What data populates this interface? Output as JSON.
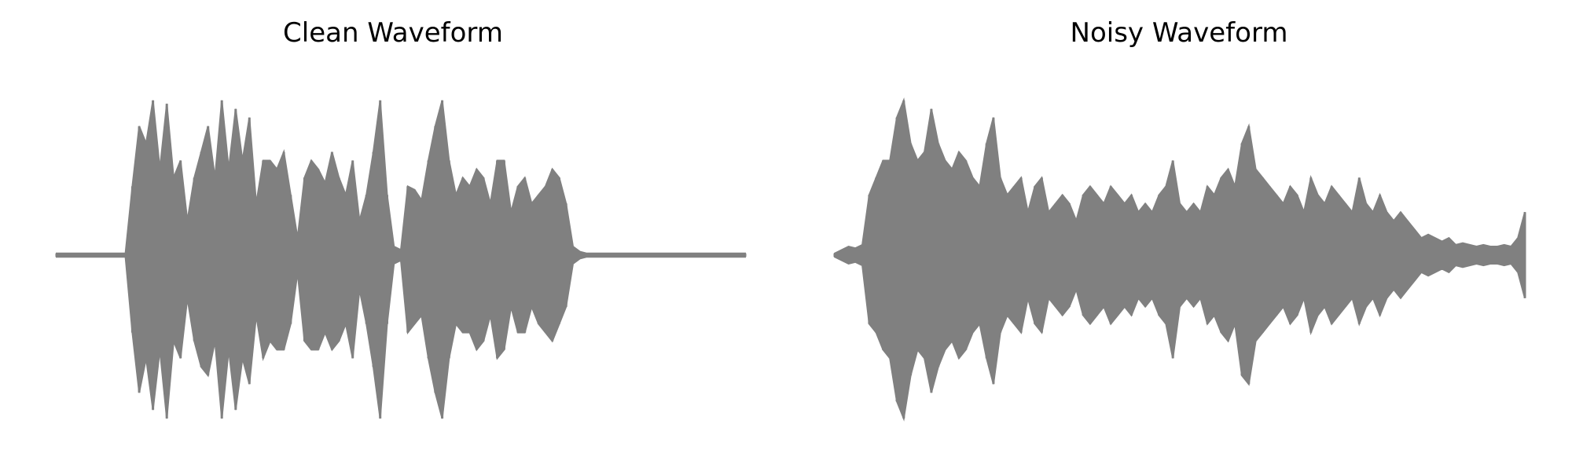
{
  "chart_data": [
    {
      "type": "area",
      "title": "Clean Waveform",
      "xlabel": "",
      "ylabel": "",
      "axes_visible": false,
      "grid": false,
      "color": "#808080",
      "ylim": [
        -1.05,
        1.05
      ],
      "x": [
        0.0,
        0.02,
        0.04,
        0.06,
        0.08,
        0.1,
        0.11,
        0.12,
        0.13,
        0.14,
        0.15,
        0.16,
        0.17,
        0.18,
        0.19,
        0.2,
        0.21,
        0.22,
        0.23,
        0.24,
        0.25,
        0.26,
        0.27,
        0.28,
        0.29,
        0.3,
        0.31,
        0.32,
        0.33,
        0.34,
        0.35,
        0.36,
        0.37,
        0.38,
        0.39,
        0.4,
        0.41,
        0.42,
        0.43,
        0.44,
        0.45,
        0.46,
        0.47,
        0.48,
        0.49,
        0.5,
        0.51,
        0.52,
        0.53,
        0.54,
        0.55,
        0.56,
        0.57,
        0.58,
        0.59,
        0.6,
        0.61,
        0.62,
        0.63,
        0.64,
        0.65,
        0.66,
        0.67,
        0.68,
        0.69,
        0.7,
        0.71,
        0.72,
        0.73,
        0.74,
        0.75,
        0.76,
        0.77,
        0.78,
        0.79,
        0.8,
        0.81,
        0.82,
        0.83,
        0.84,
        0.85,
        0.86,
        0.88,
        0.9,
        0.92,
        0.94,
        0.96,
        0.98,
        1.0
      ],
      "upper": [
        0.01,
        0.01,
        0.01,
        0.01,
        0.01,
        0.01,
        0.4,
        0.75,
        0.65,
        0.9,
        0.5,
        0.88,
        0.45,
        0.55,
        0.2,
        0.45,
        0.6,
        0.75,
        0.45,
        0.9,
        0.5,
        0.85,
        0.55,
        0.8,
        0.3,
        0.55,
        0.55,
        0.5,
        0.6,
        0.35,
        0.1,
        0.45,
        0.55,
        0.5,
        0.42,
        0.6,
        0.45,
        0.35,
        0.55,
        0.2,
        0.35,
        0.6,
        0.9,
        0.35,
        0.05,
        0.03,
        0.4,
        0.38,
        0.32,
        0.55,
        0.75,
        0.9,
        0.55,
        0.35,
        0.45,
        0.4,
        0.5,
        0.45,
        0.3,
        0.55,
        0.55,
        0.25,
        0.4,
        0.45,
        0.3,
        0.35,
        0.4,
        0.5,
        0.45,
        0.3,
        0.05,
        0.02,
        0.01,
        0.01,
        0.01,
        0.01,
        0.01,
        0.01,
        0.01,
        0.01,
        0.01,
        0.01,
        0.01,
        0.01,
        0.01,
        0.01,
        0.01,
        0.01,
        0.01
      ],
      "lower": [
        -0.01,
        -0.01,
        -0.01,
        -0.01,
        -0.01,
        -0.01,
        -0.45,
        -0.8,
        -0.6,
        -0.9,
        -0.55,
        -0.95,
        -0.5,
        -0.6,
        -0.25,
        -0.5,
        -0.65,
        -0.7,
        -0.5,
        -0.95,
        -0.55,
        -0.9,
        -0.6,
        -0.75,
        -0.35,
        -0.6,
        -0.5,
        -0.55,
        -0.55,
        -0.4,
        -0.1,
        -0.5,
        -0.55,
        -0.55,
        -0.45,
        -0.55,
        -0.5,
        -0.4,
        -0.6,
        -0.2,
        -0.4,
        -0.65,
        -0.95,
        -0.4,
        -0.05,
        -0.03,
        -0.45,
        -0.4,
        -0.35,
        -0.6,
        -0.8,
        -0.95,
        -0.6,
        -0.4,
        -0.45,
        -0.45,
        -0.55,
        -0.5,
        -0.35,
        -0.6,
        -0.55,
        -0.3,
        -0.45,
        -0.45,
        -0.3,
        -0.4,
        -0.45,
        -0.5,
        -0.4,
        -0.3,
        -0.05,
        -0.02,
        -0.01,
        -0.01,
        -0.01,
        -0.01,
        -0.01,
        -0.01,
        -0.01,
        -0.01,
        -0.01,
        -0.01,
        -0.01,
        -0.01,
        -0.01,
        -0.01,
        -0.01,
        -0.01,
        -0.01
      ]
    },
    {
      "type": "area",
      "title": "Noisy Waveform",
      "xlabel": "",
      "ylabel": "",
      "axes_visible": false,
      "grid": false,
      "color": "#808080",
      "ylim": [
        -1.05,
        1.05
      ],
      "x": [
        0.0,
        0.01,
        0.02,
        0.03,
        0.04,
        0.05,
        0.06,
        0.07,
        0.08,
        0.09,
        0.1,
        0.11,
        0.12,
        0.13,
        0.14,
        0.15,
        0.16,
        0.17,
        0.18,
        0.19,
        0.2,
        0.21,
        0.22,
        0.23,
        0.24,
        0.25,
        0.26,
        0.27,
        0.28,
        0.29,
        0.3,
        0.31,
        0.32,
        0.33,
        0.34,
        0.35,
        0.36,
        0.37,
        0.38,
        0.39,
        0.4,
        0.41,
        0.42,
        0.43,
        0.44,
        0.45,
        0.46,
        0.47,
        0.48,
        0.49,
        0.5,
        0.51,
        0.52,
        0.53,
        0.54,
        0.55,
        0.56,
        0.57,
        0.58,
        0.59,
        0.6,
        0.61,
        0.62,
        0.63,
        0.64,
        0.65,
        0.66,
        0.67,
        0.68,
        0.69,
        0.7,
        0.71,
        0.72,
        0.73,
        0.74,
        0.75,
        0.76,
        0.77,
        0.78,
        0.79,
        0.8,
        0.81,
        0.82,
        0.83,
        0.84,
        0.85,
        0.86,
        0.87,
        0.88,
        0.89,
        0.9,
        0.91,
        0.92,
        0.93,
        0.94,
        0.95,
        0.96,
        0.97,
        0.98,
        0.99,
        1.0
      ],
      "upper": [
        0.01,
        0.03,
        0.05,
        0.04,
        0.06,
        0.35,
        0.45,
        0.55,
        0.55,
        0.8,
        0.9,
        0.65,
        0.55,
        0.6,
        0.85,
        0.65,
        0.55,
        0.5,
        0.6,
        0.55,
        0.45,
        0.4,
        0.65,
        0.8,
        0.45,
        0.35,
        0.4,
        0.45,
        0.25,
        0.4,
        0.45,
        0.25,
        0.3,
        0.35,
        0.3,
        0.2,
        0.35,
        0.4,
        0.35,
        0.3,
        0.4,
        0.35,
        0.3,
        0.35,
        0.25,
        0.3,
        0.25,
        0.35,
        0.4,
        0.55,
        0.3,
        0.25,
        0.3,
        0.25,
        0.4,
        0.35,
        0.45,
        0.5,
        0.4,
        0.65,
        0.75,
        0.5,
        0.45,
        0.4,
        0.35,
        0.3,
        0.4,
        0.35,
        0.25,
        0.45,
        0.35,
        0.3,
        0.4,
        0.35,
        0.3,
        0.25,
        0.45,
        0.3,
        0.25,
        0.35,
        0.25,
        0.2,
        0.25,
        0.2,
        0.15,
        0.1,
        0.12,
        0.1,
        0.08,
        0.1,
        0.06,
        0.07,
        0.06,
        0.05,
        0.06,
        0.05,
        0.05,
        0.06,
        0.05,
        0.1,
        0.25
      ],
      "lower": [
        -0.01,
        -0.03,
        -0.05,
        -0.04,
        -0.06,
        -0.4,
        -0.45,
        -0.55,
        -0.6,
        -0.85,
        -0.95,
        -0.7,
        -0.55,
        -0.6,
        -0.8,
        -0.65,
        -0.55,
        -0.5,
        -0.6,
        -0.55,
        -0.45,
        -0.4,
        -0.6,
        -0.75,
        -0.45,
        -0.35,
        -0.4,
        -0.45,
        -0.25,
        -0.4,
        -0.45,
        -0.25,
        -0.3,
        -0.35,
        -0.3,
        -0.2,
        -0.35,
        -0.4,
        -0.35,
        -0.3,
        -0.4,
        -0.35,
        -0.3,
        -0.35,
        -0.25,
        -0.3,
        -0.25,
        -0.35,
        -0.4,
        -0.6,
        -0.3,
        -0.25,
        -0.3,
        -0.25,
        -0.4,
        -0.35,
        -0.45,
        -0.5,
        -0.4,
        -0.7,
        -0.75,
        -0.5,
        -0.45,
        -0.4,
        -0.35,
        -0.3,
        -0.4,
        -0.35,
        -0.25,
        -0.45,
        -0.35,
        -0.3,
        -0.4,
        -0.35,
        -0.3,
        -0.25,
        -0.4,
        -0.3,
        -0.25,
        -0.35,
        -0.25,
        -0.2,
        -0.25,
        -0.2,
        -0.15,
        -0.1,
        -0.12,
        -0.1,
        -0.08,
        -0.1,
        -0.06,
        -0.07,
        -0.06,
        -0.05,
        -0.06,
        -0.05,
        -0.05,
        -0.06,
        -0.05,
        -0.1,
        -0.25
      ]
    }
  ]
}
